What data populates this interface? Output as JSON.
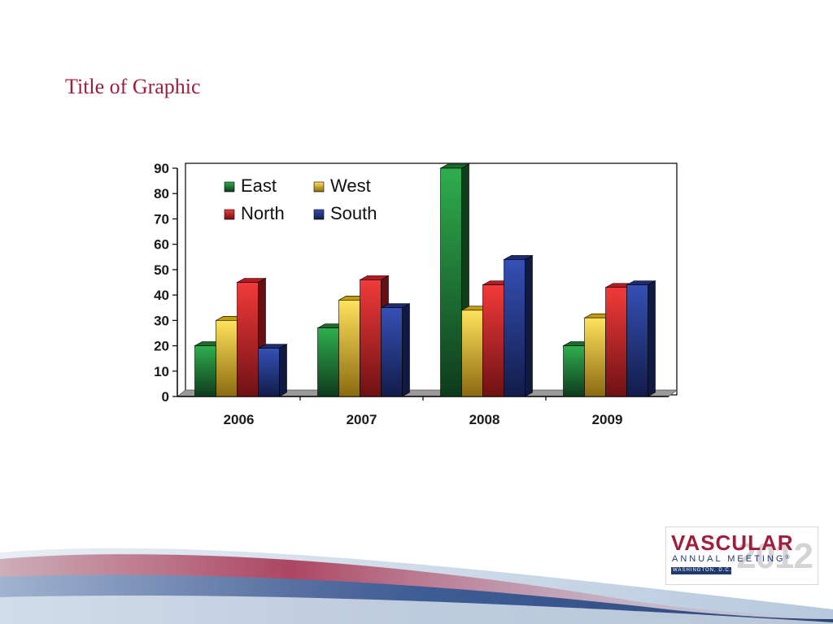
{
  "slide": {
    "title": "Title of Graphic"
  },
  "logo": {
    "word": "VASCULAR",
    "subtitle": "ANNUAL MEETING",
    "registered_mark": "®",
    "location": "WASHINGTON, D.C.",
    "year": "2012"
  },
  "colors": {
    "title": "#a01d3c",
    "logo_red": "#a01d3c",
    "logo_blue": "#1f3a6e"
  },
  "chart_data": {
    "type": "bar",
    "title": "",
    "xlabel": "",
    "ylabel": "",
    "categories": [
      "2006",
      "2007",
      "2008",
      "2009"
    ],
    "series": [
      {
        "name": "East",
        "values": [
          20,
          27,
          90,
          20
        ],
        "color": "#1f8a3a"
      },
      {
        "name": "West",
        "values": [
          30,
          38,
          34,
          31
        ],
        "color": "#f2c416"
      },
      {
        "name": "North",
        "values": [
          45,
          46,
          44,
          43
        ],
        "color": "#e0232a"
      },
      {
        "name": "South",
        "values": [
          19,
          35,
          54,
          44
        ],
        "color": "#24378f"
      }
    ],
    "ylim": [
      0,
      90
    ],
    "yticks": [
      0,
      10,
      20,
      30,
      40,
      50,
      60,
      70,
      80,
      90
    ],
    "legend_position": "top-left",
    "grid": false,
    "style": "3d"
  }
}
